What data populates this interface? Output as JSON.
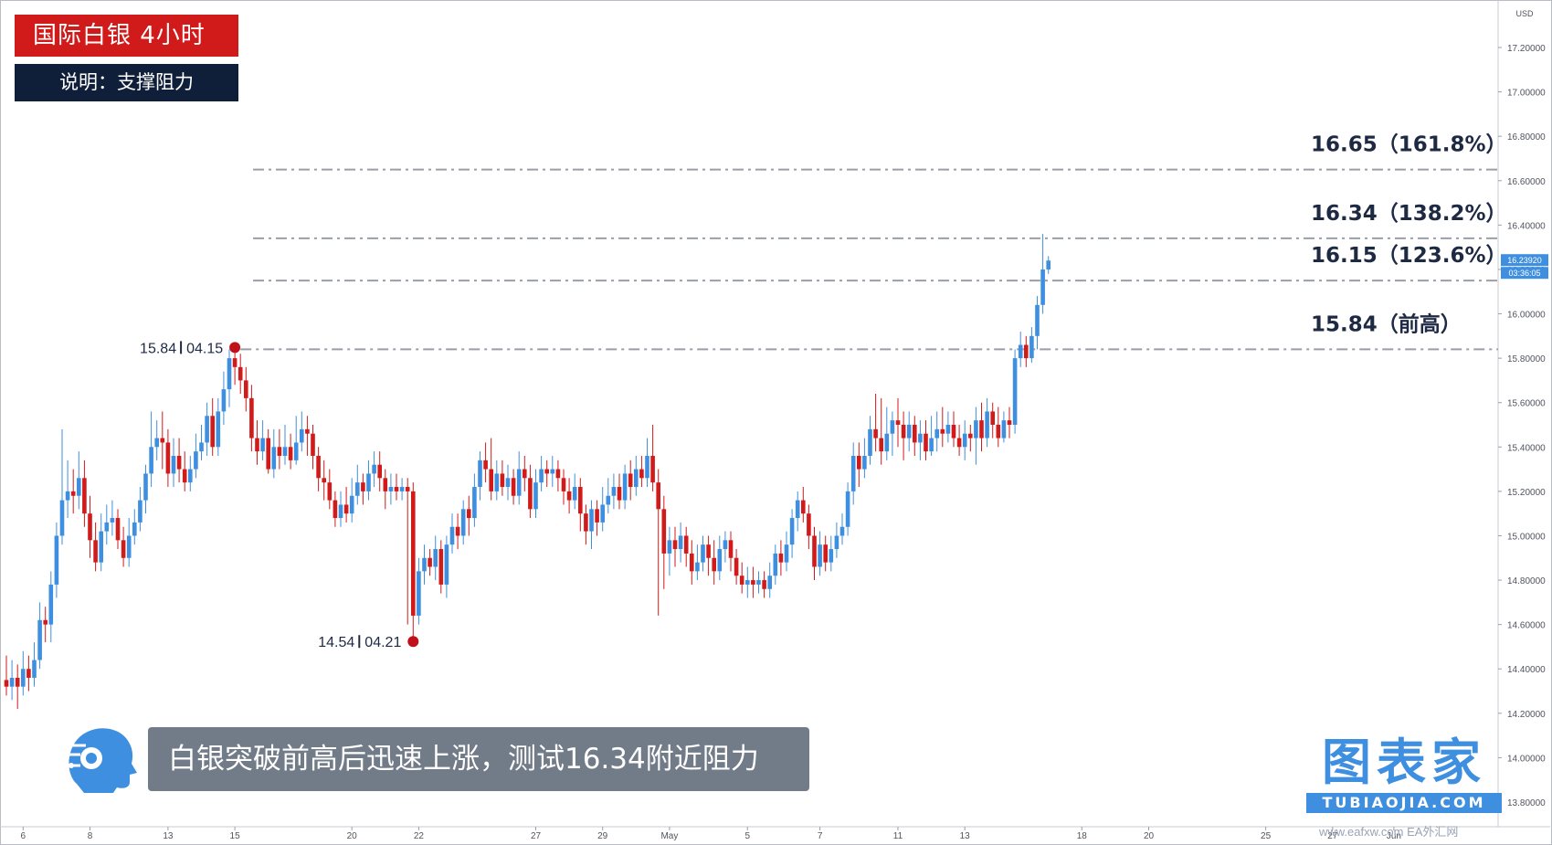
{
  "title": "国际白银 4小时",
  "subtitle": "说明：支撑阻力",
  "caption": "白银突破前高后迅速上涨，测试16.34附近阻力",
  "logo": {
    "main": "图表家",
    "sub": "TUBIAOJIA.COM"
  },
  "watermark": "www.eafxw.com EA外汇网",
  "currency_label": "USD",
  "colors": {
    "up": "#3e8fe0",
    "down": "#d11a1a",
    "level_line": "#9a9ea6",
    "title_bg": "#d11a1a",
    "subtitle_bg": "#0f1f3a",
    "caption_bg": "#727b88"
  },
  "chart_data": {
    "type": "candlestick",
    "y_axis": {
      "min": 13.8,
      "max": 17.4,
      "ticks": [
        "17.20000",
        "17.00000",
        "16.80000",
        "16.60000",
        "16.40000",
        "16.20000",
        "16.00000",
        "15.80000",
        "15.60000",
        "15.40000",
        "15.20000",
        "15.00000",
        "14.80000",
        "14.60000",
        "14.40000",
        "14.20000",
        "14.00000",
        "13.80000"
      ]
    },
    "x_axis": {
      "ticks": [
        {
          "label": "6",
          "i": 3
        },
        {
          "label": "8",
          "i": 15
        },
        {
          "label": "13",
          "i": 29
        },
        {
          "label": "15",
          "i": 41
        },
        {
          "label": "20",
          "i": 62
        },
        {
          "label": "22",
          "i": 74
        },
        {
          "label": "27",
          "i": 95
        },
        {
          "label": "29",
          "i": 107
        },
        {
          "label": "May",
          "i": 119
        },
        {
          "label": "5",
          "i": 133
        },
        {
          "label": "7",
          "i": 146
        },
        {
          "label": "11",
          "i": 160
        },
        {
          "label": "13",
          "i": 172
        },
        {
          "label": "18",
          "i": 193
        },
        {
          "label": "20",
          "i": 205
        },
        {
          "label": "25",
          "i": 226
        },
        {
          "label": "27",
          "i": 238
        },
        {
          "label": "Jun",
          "i": 249
        }
      ]
    },
    "current_price": "16.23920",
    "countdown": "03:36:05",
    "levels": [
      {
        "value": 16.65,
        "label": "16.65（161.8%）"
      },
      {
        "value": 16.34,
        "label": "16.34（138.2%）"
      },
      {
        "value": 16.15,
        "label": "16.15（123.6%）"
      },
      {
        "value": 15.84,
        "label": "15.84（前高）"
      }
    ],
    "markers": [
      {
        "type": "high",
        "i": 41,
        "value": 15.84,
        "price_label": "15.84",
        "date_label": "04.15"
      },
      {
        "type": "low",
        "i": 73,
        "value": 14.54,
        "price_label": "14.54",
        "date_label": "04.21"
      }
    ],
    "candles": [
      [
        14.35,
        14.32,
        14.46,
        14.28
      ],
      [
        14.32,
        14.36,
        14.44,
        14.26
      ],
      [
        14.36,
        14.32,
        14.42,
        14.22
      ],
      [
        14.32,
        14.4,
        14.48,
        14.28
      ],
      [
        14.4,
        14.36,
        14.46,
        14.3
      ],
      [
        14.36,
        14.44,
        14.52,
        14.32
      ],
      [
        14.44,
        14.62,
        14.7,
        14.4
      ],
      [
        14.62,
        14.6,
        14.68,
        14.52
      ],
      [
        14.6,
        14.78,
        14.84,
        14.52
      ],
      [
        14.78,
        15.0,
        15.06,
        14.72
      ],
      [
        15.0,
        15.16,
        15.48,
        14.96
      ],
      [
        15.16,
        15.2,
        15.34,
        15.08
      ],
      [
        15.2,
        15.18,
        15.3,
        15.1
      ],
      [
        15.18,
        15.26,
        15.38,
        15.12
      ],
      [
        15.26,
        15.1,
        15.34,
        15.04
      ],
      [
        15.1,
        14.98,
        15.18,
        14.9
      ],
      [
        14.98,
        14.88,
        15.06,
        14.84
      ],
      [
        14.88,
        15.02,
        15.1,
        14.84
      ],
      [
        15.02,
        15.06,
        15.14,
        14.96
      ],
      [
        15.06,
        15.08,
        15.16,
        15.0
      ],
      [
        15.08,
        14.98,
        15.12,
        14.94
      ],
      [
        14.98,
        14.9,
        15.04,
        14.86
      ],
      [
        14.9,
        15.0,
        15.08,
        14.86
      ],
      [
        15.0,
        15.06,
        15.12,
        14.96
      ],
      [
        15.06,
        15.16,
        15.22,
        15.02
      ],
      [
        15.16,
        15.28,
        15.32,
        15.1
      ],
      [
        15.28,
        15.4,
        15.56,
        15.22
      ],
      [
        15.4,
        15.44,
        15.52,
        15.34
      ],
      [
        15.44,
        15.42,
        15.56,
        15.3
      ],
      [
        15.42,
        15.28,
        15.48,
        15.22
      ],
      [
        15.28,
        15.36,
        15.44,
        15.22
      ],
      [
        15.36,
        15.3,
        15.44,
        15.24
      ],
      [
        15.3,
        15.24,
        15.38,
        15.2
      ],
      [
        15.24,
        15.3,
        15.36,
        15.2
      ],
      [
        15.3,
        15.38,
        15.46,
        15.26
      ],
      [
        15.38,
        15.42,
        15.5,
        15.34
      ],
      [
        15.42,
        15.54,
        15.6,
        15.36
      ],
      [
        15.54,
        15.4,
        15.62,
        15.36
      ],
      [
        15.4,
        15.56,
        15.62,
        15.36
      ],
      [
        15.56,
        15.66,
        15.74,
        15.5
      ],
      [
        15.66,
        15.8,
        15.84,
        15.58
      ],
      [
        15.8,
        15.76,
        15.84,
        15.68
      ],
      [
        15.76,
        15.7,
        15.82,
        15.64
      ],
      [
        15.7,
        15.62,
        15.76,
        15.56
      ],
      [
        15.62,
        15.44,
        15.68,
        15.38
      ],
      [
        15.44,
        15.38,
        15.52,
        15.32
      ],
      [
        15.38,
        15.44,
        15.52,
        15.34
      ],
      [
        15.44,
        15.3,
        15.48,
        15.28
      ],
      [
        15.3,
        15.4,
        15.48,
        15.26
      ],
      [
        15.4,
        15.36,
        15.48,
        15.3
      ],
      [
        15.36,
        15.4,
        15.5,
        15.32
      ],
      [
        15.4,
        15.34,
        15.46,
        15.3
      ],
      [
        15.34,
        15.42,
        15.54,
        15.32
      ],
      [
        15.42,
        15.48,
        15.56,
        15.38
      ],
      [
        15.48,
        15.46,
        15.54,
        15.36
      ],
      [
        15.46,
        15.36,
        15.5,
        15.3
      ],
      [
        15.36,
        15.26,
        15.4,
        15.2
      ],
      [
        15.26,
        15.24,
        15.34,
        15.16
      ],
      [
        15.24,
        15.16,
        15.3,
        15.12
      ],
      [
        15.16,
        15.08,
        15.2,
        15.04
      ],
      [
        15.08,
        15.14,
        15.2,
        15.04
      ],
      [
        15.14,
        15.1,
        15.22,
        15.06
      ],
      [
        15.1,
        15.18,
        15.26,
        15.06
      ],
      [
        15.18,
        15.24,
        15.32,
        15.14
      ],
      [
        15.24,
        15.2,
        15.28,
        15.14
      ],
      [
        15.2,
        15.28,
        15.34,
        15.16
      ],
      [
        15.28,
        15.32,
        15.38,
        15.22
      ],
      [
        15.32,
        15.26,
        15.38,
        15.2
      ],
      [
        15.26,
        15.2,
        15.3,
        15.12
      ],
      [
        15.2,
        15.22,
        15.28,
        15.14
      ],
      [
        15.22,
        15.2,
        15.28,
        15.16
      ],
      [
        15.2,
        15.22,
        15.26,
        15.16
      ],
      [
        15.22,
        15.2,
        15.26,
        14.6
      ],
      [
        15.2,
        14.64,
        15.24,
        14.54
      ],
      [
        14.64,
        14.84,
        14.9,
        14.6
      ],
      [
        14.84,
        14.9,
        14.96,
        14.78
      ],
      [
        14.9,
        14.86,
        14.94,
        14.82
      ],
      [
        14.86,
        14.94,
        15.0,
        14.8
      ],
      [
        14.94,
        14.78,
        14.98,
        14.74
      ],
      [
        14.78,
        14.96,
        15.0,
        14.72
      ],
      [
        14.96,
        15.04,
        15.1,
        14.92
      ],
      [
        15.04,
        15.0,
        15.1,
        14.94
      ],
      [
        15.0,
        15.12,
        15.16,
        14.96
      ],
      [
        15.12,
        15.08,
        15.18,
        15.0
      ],
      [
        15.08,
        15.22,
        15.28,
        15.04
      ],
      [
        15.22,
        15.34,
        15.38,
        15.16
      ],
      [
        15.34,
        15.3,
        15.42,
        15.24
      ],
      [
        15.3,
        15.2,
        15.44,
        15.16
      ],
      [
        15.2,
        15.28,
        15.34,
        15.16
      ],
      [
        15.28,
        15.22,
        15.34,
        15.18
      ],
      [
        15.22,
        15.26,
        15.32,
        15.16
      ],
      [
        15.26,
        15.18,
        15.3,
        15.14
      ],
      [
        15.18,
        15.3,
        15.38,
        15.14
      ],
      [
        15.3,
        15.26,
        15.36,
        15.2
      ],
      [
        15.26,
        15.12,
        15.32,
        15.08
      ],
      [
        15.12,
        15.24,
        15.3,
        15.08
      ],
      [
        15.24,
        15.3,
        15.36,
        15.2
      ],
      [
        15.3,
        15.28,
        15.34,
        15.22
      ],
      [
        15.28,
        15.3,
        15.36,
        15.22
      ],
      [
        15.3,
        15.26,
        15.34,
        15.2
      ],
      [
        15.26,
        15.2,
        15.3,
        15.14
      ],
      [
        15.2,
        15.16,
        15.26,
        15.1
      ],
      [
        15.16,
        15.22,
        15.28,
        15.12
      ],
      [
        15.22,
        15.1,
        15.26,
        15.02
      ],
      [
        15.1,
        15.02,
        15.14,
        14.96
      ],
      [
        15.02,
        15.12,
        15.16,
        14.94
      ],
      [
        15.12,
        15.06,
        15.16,
        15.0
      ],
      [
        15.06,
        15.14,
        15.22,
        15.02
      ],
      [
        15.14,
        15.18,
        15.26,
        15.1
      ],
      [
        15.18,
        15.22,
        15.28,
        15.12
      ],
      [
        15.22,
        15.16,
        15.28,
        15.12
      ],
      [
        15.16,
        15.28,
        15.32,
        15.12
      ],
      [
        15.28,
        15.22,
        15.34,
        15.16
      ],
      [
        15.22,
        15.3,
        15.36,
        15.18
      ],
      [
        15.3,
        15.26,
        15.36,
        15.22
      ],
      [
        15.26,
        15.36,
        15.44,
        15.22
      ],
      [
        15.36,
        15.24,
        15.5,
        15.2
      ],
      [
        15.24,
        15.12,
        15.3,
        14.64
      ],
      [
        15.12,
        14.92,
        15.18,
        14.76
      ],
      [
        14.92,
        14.98,
        15.04,
        14.82
      ],
      [
        14.98,
        14.94,
        15.04,
        14.86
      ],
      [
        14.94,
        15.0,
        15.06,
        14.88
      ],
      [
        15.0,
        14.92,
        15.04,
        14.86
      ],
      [
        14.92,
        14.84,
        14.98,
        14.78
      ],
      [
        14.84,
        14.88,
        14.96,
        14.8
      ],
      [
        14.88,
        14.96,
        15.0,
        14.84
      ],
      [
        14.96,
        14.9,
        15.0,
        14.82
      ],
      [
        14.9,
        14.84,
        14.98,
        14.78
      ],
      [
        14.84,
        14.94,
        15.0,
        14.8
      ],
      [
        14.94,
        14.98,
        15.02,
        14.88
      ],
      [
        14.98,
        14.9,
        15.02,
        14.84
      ],
      [
        14.9,
        14.82,
        14.94,
        14.78
      ],
      [
        14.82,
        14.78,
        14.88,
        14.74
      ],
      [
        14.78,
        14.8,
        14.86,
        14.72
      ],
      [
        14.8,
        14.78,
        14.86,
        14.72
      ],
      [
        14.78,
        14.8,
        14.84,
        14.74
      ],
      [
        14.8,
        14.76,
        14.84,
        14.72
      ],
      [
        14.76,
        14.82,
        14.88,
        14.72
      ],
      [
        14.82,
        14.92,
        14.96,
        14.78
      ],
      [
        14.92,
        14.88,
        14.98,
        14.82
      ],
      [
        14.88,
        14.96,
        15.02,
        14.84
      ],
      [
        14.96,
        15.08,
        15.12,
        14.9
      ],
      [
        15.08,
        15.16,
        15.2,
        15.02
      ],
      [
        15.16,
        15.1,
        15.22,
        15.06
      ],
      [
        15.1,
        15.0,
        15.14,
        14.94
      ],
      [
        15.0,
        14.86,
        15.04,
        14.8
      ],
      [
        14.86,
        14.96,
        15.02,
        14.82
      ],
      [
        14.96,
        14.88,
        15.0,
        14.84
      ],
      [
        14.88,
        14.94,
        15.0,
        14.84
      ],
      [
        14.94,
        15.0,
        15.06,
        14.9
      ],
      [
        15.0,
        15.04,
        15.1,
        14.96
      ],
      [
        15.04,
        15.2,
        15.24,
        15.0
      ],
      [
        15.2,
        15.36,
        15.42,
        15.14
      ],
      [
        15.36,
        15.3,
        15.42,
        15.22
      ],
      [
        15.3,
        15.36,
        15.44,
        15.26
      ],
      [
        15.36,
        15.48,
        15.54,
        15.32
      ],
      [
        15.48,
        15.44,
        15.64,
        15.38
      ],
      [
        15.44,
        15.38,
        15.62,
        15.32
      ],
      [
        15.38,
        15.46,
        15.58,
        15.34
      ],
      [
        15.46,
        15.52,
        15.56,
        15.36
      ],
      [
        15.52,
        15.5,
        15.62,
        15.4
      ],
      [
        15.5,
        15.44,
        15.56,
        15.34
      ],
      [
        15.44,
        15.5,
        15.56,
        15.38
      ],
      [
        15.5,
        15.42,
        15.54,
        15.36
      ],
      [
        15.42,
        15.46,
        15.52,
        15.34
      ],
      [
        15.46,
        15.38,
        15.52,
        15.34
      ],
      [
        15.38,
        15.44,
        15.54,
        15.36
      ],
      [
        15.44,
        15.48,
        15.56,
        15.38
      ],
      [
        15.48,
        15.46,
        15.58,
        15.4
      ],
      [
        15.46,
        15.5,
        15.56,
        15.42
      ],
      [
        15.5,
        15.44,
        15.56,
        15.4
      ],
      [
        15.44,
        15.4,
        15.5,
        15.36
      ],
      [
        15.4,
        15.46,
        15.52,
        15.34
      ],
      [
        15.46,
        15.44,
        15.5,
        15.38
      ],
      [
        15.44,
        15.52,
        15.58,
        15.32
      ],
      [
        15.52,
        15.44,
        15.6,
        15.38
      ],
      [
        15.44,
        15.56,
        15.62,
        15.4
      ],
      [
        15.56,
        15.5,
        15.6,
        15.44
      ],
      [
        15.5,
        15.44,
        15.58,
        15.4
      ],
      [
        15.44,
        15.52,
        15.56,
        15.42
      ],
      [
        15.52,
        15.5,
        15.58,
        15.44
      ],
      [
        15.5,
        15.8,
        15.84,
        15.46
      ],
      [
        15.8,
        15.86,
        15.92,
        15.76
      ],
      [
        15.86,
        15.8,
        15.9,
        15.76
      ],
      [
        15.8,
        15.9,
        15.94,
        15.78
      ],
      [
        15.9,
        16.04,
        16.08,
        15.84
      ],
      [
        16.04,
        16.2,
        16.36,
        16.0
      ],
      [
        16.2,
        16.24,
        16.26,
        16.18
      ]
    ]
  }
}
